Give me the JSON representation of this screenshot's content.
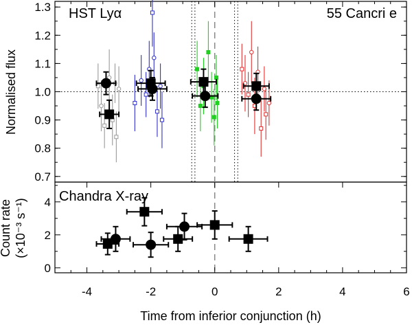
{
  "chart_data": [
    {
      "type": "scatter",
      "panel": "top",
      "title_left": "HST Lyα",
      "title_right": "55 Cancri e",
      "ylabel": "Normalised flux",
      "xlim": [
        -5,
        6
      ],
      "ylim": [
        0.68,
        1.32
      ],
      "yticks": [
        0.7,
        0.8,
        0.9,
        1.0,
        1.1,
        1.2,
        1.3
      ],
      "yticklabels": [
        "0.7",
        "0.8",
        "0.9",
        "1.0",
        "1.1",
        "1.2",
        "1.3"
      ],
      "reference_line_y": 1.0,
      "transit_line_x": 0,
      "ingress_egress_x": [
        -0.72,
        -0.62,
        0.62,
        0.72
      ],
      "colors": {
        "grey": "#999999",
        "blue": "#3030c8",
        "green": "#20d020",
        "red": "#e03030",
        "black": "#000000"
      },
      "small_points": [
        {
          "color": "grey",
          "style": "open",
          "points": [
            {
              "x": -3.65,
              "y": 1.02,
              "err": 0.08
            },
            {
              "x": -3.55,
              "y": 0.95,
              "err": 0.09
            },
            {
              "x": -3.45,
              "y": 0.88,
              "err": 0.08
            },
            {
              "x": -3.3,
              "y": 1.05,
              "err": 0.1
            },
            {
              "x": -3.2,
              "y": 0.9,
              "err": 0.09
            },
            {
              "x": -3.12,
              "y": 1.03,
              "err": 0.07
            },
            {
              "x": -3.08,
              "y": 0.84,
              "err": 0.09
            },
            {
              "x": -3.0,
              "y": 1.01,
              "err": 0.08
            }
          ]
        },
        {
          "color": "blue",
          "style": "open",
          "points": [
            {
              "x": -2.5,
              "y": 0.96,
              "err": 0.1
            },
            {
              "x": -2.3,
              "y": 1.04,
              "err": 0.09
            },
            {
              "x": -2.15,
              "y": 0.99,
              "err": 0.08
            },
            {
              "x": -2.05,
              "y": 1.08,
              "err": 0.1
            },
            {
              "x": -1.95,
              "y": 1.28,
              "err": 0.12
            },
            {
              "x": -1.9,
              "y": 1.12,
              "err": 0.09
            },
            {
              "x": -1.8,
              "y": 0.93,
              "err": 0.09
            },
            {
              "x": -1.7,
              "y": 1.02,
              "err": 0.08
            },
            {
              "x": -1.65,
              "y": 0.9,
              "err": 0.1
            }
          ]
        },
        {
          "color": "green",
          "style": "filled",
          "points": [
            {
              "x": -0.55,
              "y": 1.08,
              "err": 0.1
            },
            {
              "x": -0.45,
              "y": 0.95,
              "err": 0.09
            },
            {
              "x": -0.35,
              "y": 1.02,
              "err": 0.1
            },
            {
              "x": -0.2,
              "y": 1.14,
              "err": 0.11
            },
            {
              "x": -0.1,
              "y": 0.98,
              "err": 0.09
            },
            {
              "x": -0.02,
              "y": 0.91,
              "err": 0.1
            },
            {
              "x": 0.05,
              "y": 1.05,
              "err": 0.08
            },
            {
              "x": 0.08,
              "y": 0.96,
              "err": 0.09
            }
          ]
        },
        {
          "color": "red",
          "style": "open",
          "points": [
            {
              "x": 0.85,
              "y": 1.08,
              "err": 0.09
            },
            {
              "x": 0.95,
              "y": 1.03,
              "err": 0.1
            },
            {
              "x": 1.05,
              "y": 0.99,
              "err": 0.08
            },
            {
              "x": 1.15,
              "y": 1.14,
              "err": 0.11
            },
            {
              "x": 1.25,
              "y": 0.95,
              "err": 0.1
            },
            {
              "x": 1.35,
              "y": 1.07,
              "err": 0.09
            },
            {
              "x": 1.45,
              "y": 0.87,
              "err": 0.1
            },
            {
              "x": 1.55,
              "y": 1.01,
              "err": 0.08
            },
            {
              "x": 1.6,
              "y": 0.92,
              "err": 0.09
            },
            {
              "x": 1.7,
              "y": 0.96,
              "err": 0.08
            }
          ]
        }
      ],
      "binned_points": [
        {
          "marker": "circle",
          "x": -3.4,
          "y": 1.03,
          "xerr": 0.3,
          "yerr": 0.04
        },
        {
          "marker": "square",
          "x": -3.3,
          "y": 0.92,
          "xerr": 0.3,
          "yerr": 0.05
        },
        {
          "marker": "square",
          "x": -2.0,
          "y": 1.03,
          "xerr": 0.45,
          "yerr": 0.045
        },
        {
          "marker": "circle",
          "x": -1.95,
          "y": 1.01,
          "xerr": 0.45,
          "yerr": 0.04
        },
        {
          "marker": "square",
          "x": -0.35,
          "y": 1.035,
          "xerr": 0.4,
          "yerr": 0.045
        },
        {
          "marker": "circle",
          "x": -0.3,
          "y": 0.985,
          "xerr": 0.4,
          "yerr": 0.04
        },
        {
          "marker": "square",
          "x": 1.3,
          "y": 1.02,
          "xerr": 0.4,
          "yerr": 0.045
        },
        {
          "marker": "circle",
          "x": 1.3,
          "y": 0.975,
          "xerr": 0.45,
          "yerr": 0.04
        }
      ]
    },
    {
      "type": "scatter",
      "panel": "bottom",
      "title": "Chandra X-ray",
      "ylabel_line1": "Count rate",
      "ylabel_line2": "(×10⁻³ s⁻¹)",
      "xlabel": "Time from inferior conjunction (h)",
      "xlim": [
        -5,
        6
      ],
      "ylim": [
        -0.3,
        5.2
      ],
      "xticks": [
        -4,
        -2,
        0,
        2,
        4,
        6
      ],
      "xticklabels": [
        "-4",
        "-2",
        "0",
        "2",
        "4",
        "6"
      ],
      "yticks": [
        0,
        2,
        4
      ],
      "yticklabels": [
        "0",
        "2",
        "4"
      ],
      "transit_line_x": 0,
      "points": [
        {
          "marker": "square",
          "x": -3.35,
          "y": 1.45,
          "xerr": 0.35,
          "yerr": 0.65
        },
        {
          "marker": "circle",
          "x": -3.1,
          "y": 1.75,
          "xerr": 0.45,
          "yerr": 0.75
        },
        {
          "marker": "square",
          "x": -2.2,
          "y": 3.4,
          "xerr": 0.55,
          "yerr": 0.85
        },
        {
          "marker": "circle",
          "x": -2.0,
          "y": 1.4,
          "xerr": 0.55,
          "yerr": 0.75
        },
        {
          "marker": "square",
          "x": -1.15,
          "y": 1.75,
          "xerr": 0.45,
          "yerr": 0.75
        },
        {
          "marker": "circle",
          "x": -0.95,
          "y": 2.5,
          "xerr": 0.55,
          "yerr": 0.8
        },
        {
          "marker": "square",
          "x": 0.0,
          "y": 2.6,
          "xerr": 0.55,
          "yerr": 0.85
        },
        {
          "marker": "square",
          "x": 1.05,
          "y": 1.75,
          "xerr": 0.6,
          "yerr": 0.75
        }
      ]
    }
  ]
}
